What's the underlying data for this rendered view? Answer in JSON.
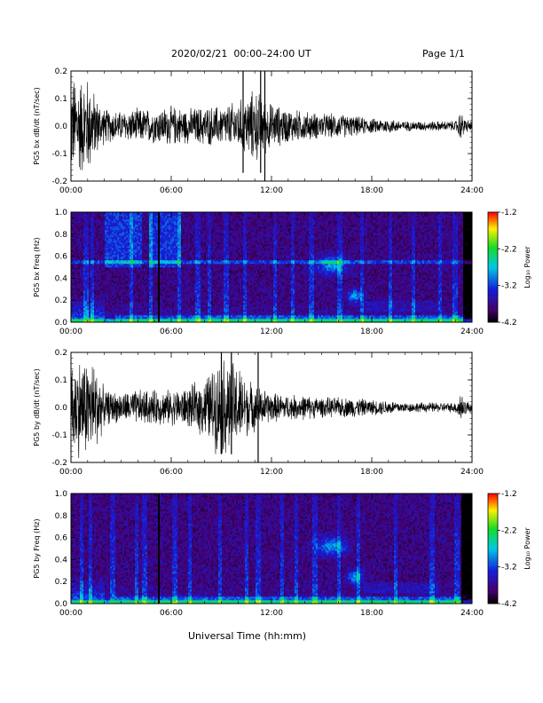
{
  "header": {
    "title": "2020/02/21  00:00–24:00 UT",
    "page": "Page 1/1"
  },
  "chart_data": [
    {
      "type": "line",
      "ylabel": "PG5 bx dB/dt (nT/sec)",
      "xlabel": "",
      "xlim": [
        0,
        24
      ],
      "ylim": [
        -0.2,
        0.2
      ],
      "x_ticks": [
        "00:00",
        "06:00",
        "12:00",
        "18:00",
        "24:00"
      ],
      "y_ticks": [
        "0.2",
        "0.1",
        "0.0",
        "-0.1",
        "-0.2"
      ],
      "y_tick_values": [
        0.2,
        0.1,
        0.0,
        -0.1,
        -0.2
      ],
      "envelope": {
        "x": [
          0,
          0.5,
          1,
          1.5,
          2,
          3,
          4,
          5,
          6,
          7,
          8,
          9,
          10,
          10.5,
          11,
          11.5,
          12,
          13,
          14,
          15,
          16,
          17,
          18,
          19,
          20,
          21,
          22,
          23,
          23.3,
          23.6,
          24
        ],
        "amplitude": [
          0.2,
          0.2,
          0.2,
          0.12,
          0.07,
          0.06,
          0.07,
          0.07,
          0.08,
          0.07,
          0.08,
          0.08,
          0.1,
          0.12,
          0.15,
          0.12,
          0.09,
          0.07,
          0.06,
          0.05,
          0.05,
          0.04,
          0.03,
          0.03,
          0.02,
          0.02,
          0.02,
          0.02,
          0.06,
          0.03,
          0.02
        ]
      }
    },
    {
      "type": "heatmap",
      "ylabel": "PG5 bx Freq (Hz)",
      "xlabel": "",
      "xlim": [
        0,
        24
      ],
      "ylim": [
        0.0,
        1.0
      ],
      "x_ticks": [
        "00:00",
        "06:00",
        "12:00",
        "18:00",
        "24:00"
      ],
      "y_ticks": [
        "1.0",
        "0.8",
        "0.6",
        "0.4",
        "0.2",
        "0.0"
      ],
      "y_tick_values": [
        1.0,
        0.8,
        0.6,
        0.4,
        0.2,
        0.0
      ],
      "colorbar": {
        "label": "Log₁₀ Power",
        "range": [
          -4.2,
          -1.2
        ],
        "ticks": [
          "-1.2",
          "-2.2",
          "-3.2",
          "-4.2"
        ],
        "tick_values": [
          -1.2,
          -2.2,
          -3.2,
          -4.2
        ]
      }
    },
    {
      "type": "line",
      "ylabel": "PG5 by dB/dt (nT/sec)",
      "xlabel": "",
      "xlim": [
        0,
        24
      ],
      "ylim": [
        -0.2,
        0.2
      ],
      "x_ticks": [
        "00:00",
        "06:00",
        "12:00",
        "18:00",
        "24:00"
      ],
      "y_ticks": [
        "0.2",
        "0.1",
        "0.0",
        "-0.1",
        "-0.2"
      ],
      "y_tick_values": [
        0.2,
        0.1,
        0.0,
        -0.1,
        -0.2
      ],
      "envelope": {
        "x": [
          0,
          0.5,
          1,
          1.5,
          2,
          3,
          4,
          5,
          6,
          7,
          8,
          8.5,
          9,
          9.5,
          10,
          10.5,
          11,
          12,
          13,
          14,
          15,
          16,
          17,
          18,
          19,
          20,
          21,
          22,
          23,
          23.3,
          23.6,
          24
        ],
        "amplitude": [
          0.2,
          0.2,
          0.2,
          0.18,
          0.07,
          0.06,
          0.07,
          0.07,
          0.07,
          0.08,
          0.12,
          0.16,
          0.2,
          0.2,
          0.17,
          0.12,
          0.09,
          0.06,
          0.05,
          0.05,
          0.04,
          0.04,
          0.04,
          0.03,
          0.03,
          0.02,
          0.02,
          0.02,
          0.02,
          0.07,
          0.03,
          0.02
        ]
      }
    },
    {
      "type": "heatmap",
      "ylabel": "PG5 by Freq (Hz)",
      "xlabel": "Universal Time (hh:mm)",
      "xlim": [
        0,
        24
      ],
      "ylim": [
        0.0,
        1.0
      ],
      "x_ticks": [
        "00:00",
        "06:00",
        "12:00",
        "18:00",
        "24:00"
      ],
      "y_ticks": [
        "1.0",
        "0.8",
        "0.6",
        "0.4",
        "0.2",
        "0.0"
      ],
      "y_tick_values": [
        1.0,
        0.8,
        0.6,
        0.4,
        0.2,
        0.0
      ],
      "colorbar": {
        "label": "Log₁₀ Power",
        "range": [
          -4.2,
          -1.2
        ],
        "ticks": [
          "-1.2",
          "-2.2",
          "-3.2",
          "-4.2"
        ],
        "tick_values": [
          -1.2,
          -2.2,
          -3.2,
          -4.2
        ]
      }
    }
  ]
}
